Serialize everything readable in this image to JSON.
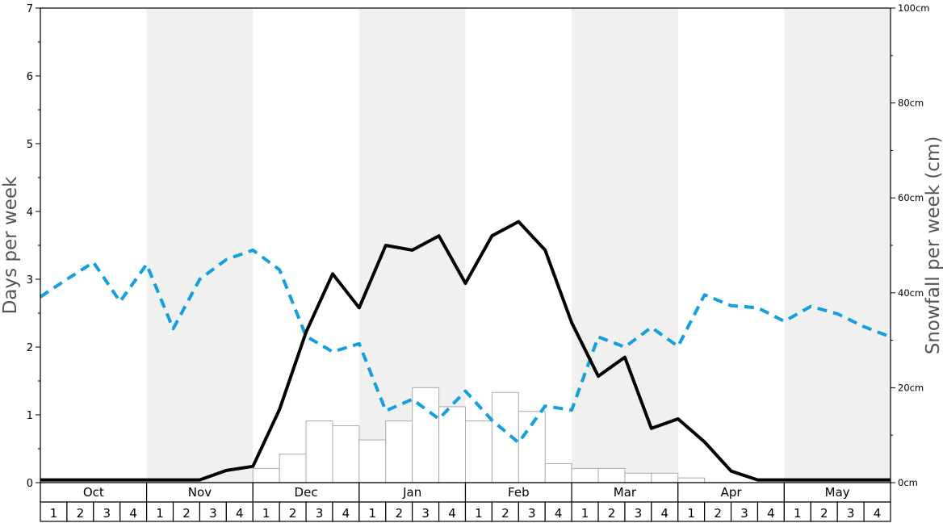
{
  "chart_data": {
    "type": "bar+line",
    "left_axis": {
      "label": "Days per week",
      "range": [
        0,
        7
      ],
      "ticks": [
        0,
        1,
        2,
        3,
        4,
        5,
        6,
        7
      ]
    },
    "right_axis": {
      "label": "Snowfall per week (cm)",
      "range": [
        0,
        100
      ],
      "tick_labels": [
        "0cm",
        "20cm",
        "40cm",
        "60cm",
        "80cm",
        "100cm"
      ]
    },
    "months": [
      "Oct",
      "Nov",
      "Dec",
      "Jan",
      "Feb",
      "Mar",
      "Apr",
      "May"
    ],
    "week_labels": [
      "1",
      "2",
      "3",
      "4"
    ],
    "snowfall_bars_cm": [
      0,
      0,
      0,
      0,
      0,
      0,
      0,
      0,
      3,
      6,
      13,
      12,
      9,
      13,
      20,
      16,
      13,
      19,
      15,
      4,
      3,
      3,
      2,
      2,
      1,
      0,
      0,
      0,
      0,
      0,
      0,
      0
    ],
    "snow_days_solid": [
      0.04,
      0.04,
      0.04,
      0.04,
      0.04,
      0.04,
      0.04,
      0.18,
      0.24,
      1.08,
      2.22,
      3.08,
      2.58,
      3.5,
      3.43,
      3.64,
      2.94,
      3.64,
      3.85,
      3.43,
      2.36,
      1.57,
      1.85,
      0.8,
      0.94,
      0.6,
      0.17,
      0.04,
      0.04,
      0.04,
      0.04,
      0.04,
      0.04
    ],
    "line_dashed": [
      2.74,
      3.0,
      3.25,
      2.67,
      3.22,
      2.27,
      3.0,
      3.29,
      3.43,
      3.14,
      2.16,
      1.93,
      2.05,
      1.06,
      1.23,
      0.94,
      1.35,
      0.92,
      0.59,
      1.13,
      1.07,
      2.15,
      2.0,
      2.29,
      2.01,
      2.77,
      2.61,
      2.58,
      2.38,
      2.6,
      2.49,
      2.3,
      2.15
    ],
    "colors": {
      "bar_fill": "#ffffff",
      "bar_stroke": "#aaaaaa",
      "solid_line": "#000000",
      "dashed_line": "#139fdf",
      "band_shade": "#f0f0f0"
    },
    "grid": false
  }
}
